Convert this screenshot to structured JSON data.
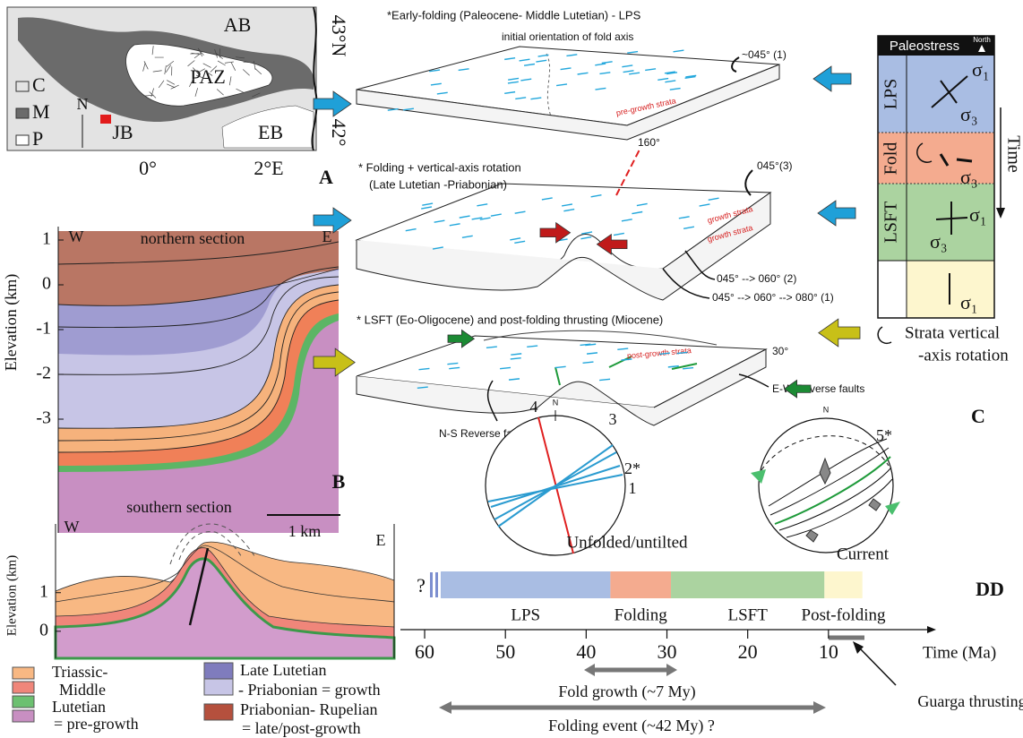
{
  "map": {
    "regions": [
      "AB",
      "PAZ",
      "JB",
      "EB"
    ],
    "legend": [
      "C",
      "M",
      "P"
    ],
    "north": "N",
    "lat": [
      "43°N",
      "42°"
    ],
    "lon": [
      "0°",
      "2°E"
    ],
    "panel": "A"
  },
  "north_section": {
    "title": "northern section",
    "west": "W",
    "east": "E",
    "axis_label": "Elevation (km)",
    "ylim": [
      1.3,
      -5.5
    ],
    "yticks": [
      1,
      0,
      -1,
      -2,
      -3
    ],
    "panel": "B"
  },
  "south_section": {
    "title": "southern section",
    "scale": "1 km",
    "west": "W",
    "east": "E",
    "axis_label": "Elevation (km)",
    "ylim": [
      2.2,
      -0.7
    ],
    "yticks": [
      1,
      0
    ]
  },
  "legend": {
    "pre_growth": [
      "Triassic-",
      "Middle",
      "Lutetian",
      "= pre-growth"
    ],
    "growth": [
      "Late Lutetian",
      "- Priabonian = growth"
    ],
    "post_growth": [
      "Priabonian- Rupelian",
      "= late/post-growth"
    ]
  },
  "blocks": [
    {
      "title": [
        "*Early-folding (Paleocene- Middle Lutetian) - LPS"
      ],
      "notes": [
        "initial orientation of fold axis",
        "~045° (1)",
        "pre-growth strata"
      ]
    },
    {
      "title": [
        "* Folding + vertical-axis rotation",
        "(Late Lutetian -Priabonian)"
      ],
      "notes": [
        "160°",
        "045°(3)",
        "growth strata",
        "growth strata",
        "045° --> 060° (2)",
        "045° --> 060° --> 080° (1)"
      ]
    },
    {
      "title": [
        "* LSFT (Eo-Oligocene) and post-folding thrusting (Miocene)"
      ],
      "notes": [
        "post-growth strata",
        "30°",
        "E-W Reverse faults",
        "N-S Reverse faults"
      ]
    }
  ],
  "paleostress": {
    "title": "Paleostress",
    "north": "North",
    "rows": [
      "LPS",
      "Fold",
      "LSFT"
    ],
    "sigma1": "σ₁",
    "sigma3": "σ₃",
    "time": "Time",
    "rotation_note": [
      "Strata vertical",
      "-axis rotation"
    ],
    "panel": "C"
  },
  "stereonets": {
    "left": {
      "north": "N",
      "lines": [
        "4",
        "3",
        "2*",
        "1"
      ],
      "caption": "Unfolded/untilted"
    },
    "right": {
      "north": "N",
      "label": "5*",
      "caption": "Current"
    }
  },
  "timeline": {
    "panel": "DD",
    "unknown": "?",
    "axis_label": "Time (Ma)",
    "xlim": [
      63,
      -1
    ],
    "xticks": [
      60,
      50,
      40,
      30,
      20,
      10
    ],
    "segments": [
      {
        "label": "LPS",
        "start": 58,
        "end": 37,
        "color": "#a9bde3"
      },
      {
        "label": "Folding",
        "start": 37,
        "end": 29.5,
        "color": "#f4ab8f"
      },
      {
        "label": "LSFT",
        "start": 29.5,
        "end": 10.5,
        "color": "#abd3a0"
      },
      {
        "label": "Post-folding",
        "start": 10.5,
        "end": 5.8,
        "color": "#fdf6ce"
      }
    ],
    "fold_growth": "Fold growth (~7 My)",
    "folding_event": "Folding event (~42 My) ?",
    "thrusting": "Guarga thrusting"
  }
}
